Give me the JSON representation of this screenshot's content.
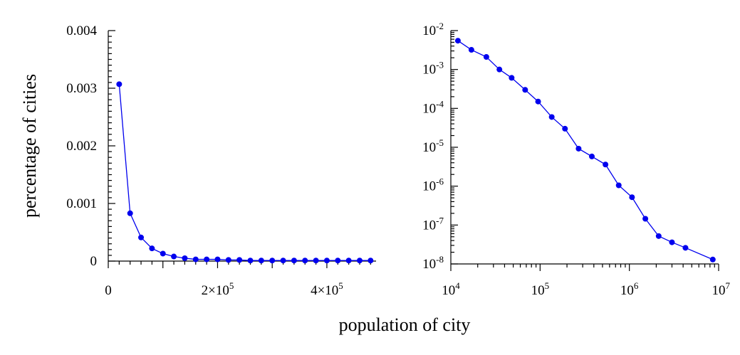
{
  "chart_data": [
    {
      "type": "line",
      "xscale": "linear",
      "yscale": "linear",
      "xlim": [
        0,
        490000
      ],
      "ylim": [
        0,
        0.004
      ],
      "xticks": [
        0,
        200000,
        400000
      ],
      "xtick_labels": [
        "0",
        "2×10",
        "4×10"
      ],
      "xtick_exponents": [
        "",
        "5",
        "5"
      ],
      "yticks": [
        0,
        0.001,
        0.002,
        0.003,
        0.004
      ],
      "ytick_labels": [
        "0",
        "0.001",
        "0.002",
        "0.003",
        "0.004"
      ],
      "ylabel": "percentage of cities",
      "series": [
        {
          "color": "#0000ee",
          "x": [
            20000,
            40000,
            60000,
            80000,
            100000,
            120000,
            140000,
            160000,
            180000,
            200000,
            220000,
            240000,
            260000,
            280000,
            300000,
            320000,
            340000,
            360000,
            380000,
            400000,
            420000,
            440000,
            460000,
            480000
          ],
          "y": [
            0.00307,
            0.00083,
            0.00041,
            0.00022,
            0.00013,
            8e-05,
            5e-05,
            3e-05,
            3e-05,
            3e-05,
            2e-05,
            2e-05,
            1e-05,
            1e-05,
            1e-05,
            1e-05,
            1e-05,
            1e-05,
            1e-05,
            1e-05,
            1e-05,
            1e-05,
            1e-05,
            1e-05
          ]
        }
      ]
    },
    {
      "type": "line",
      "xscale": "log",
      "yscale": "log",
      "xlim": [
        10000,
        10000000
      ],
      "ylim": [
        1e-08,
        0.01
      ],
      "xtick_labels": [
        "10",
        "10",
        "10",
        "10"
      ],
      "xtick_exponents": [
        "4",
        "5",
        "6",
        "7"
      ],
      "ytick_labels": [
        "10",
        "10",
        "10",
        "10",
        "10",
        "10",
        "10"
      ],
      "ytick_exponents": [
        "-2",
        "-3",
        "-4",
        "-5",
        "-6",
        "-7",
        "-8"
      ],
      "series": [
        {
          "color": "#0000ee",
          "x": [
            12000,
            17000,
            25000,
            35000,
            48000,
            68000,
            95000,
            135000,
            190000,
            270000,
            380000,
            540000,
            760000,
            1070000,
            1510000,
            2130000,
            3000000,
            4250000,
            8600000
          ],
          "y": [
            0.0055,
            0.0032,
            0.0021,
            0.001,
            0.00061,
            0.0003,
            0.00015,
            6e-05,
            3e-05,
            9.2e-06,
            5.8e-06,
            3.6e-06,
            1.05e-06,
            5.2e-07,
            1.45e-07,
            5.2e-08,
            3.6e-08,
            2.6e-08,
            1.3e-08
          ]
        }
      ]
    }
  ],
  "xlabel": "population of city"
}
